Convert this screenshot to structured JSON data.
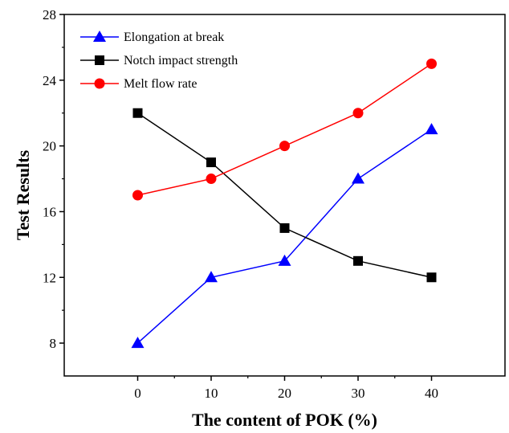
{
  "chart_data": {
    "type": "line",
    "xlabel": "The content of POK (%)",
    "ylabel": "Test Results",
    "x": [
      0,
      10,
      20,
      30,
      40
    ],
    "xlim": [
      -10,
      50
    ],
    "ylim": [
      6,
      28
    ],
    "xticks": [
      0,
      10,
      20,
      30,
      40
    ],
    "yticks": [
      8,
      12,
      16,
      20,
      24,
      28
    ],
    "grid": false,
    "legend_position": "top-left",
    "series": [
      {
        "name": "Elongation at break",
        "values": [
          8,
          12,
          13,
          18,
          21
        ],
        "color": "#0000ff",
        "marker": "triangle"
      },
      {
        "name": "Notch impact strength",
        "values": [
          22,
          19,
          15,
          13,
          12
        ],
        "color": "#000000",
        "marker": "square"
      },
      {
        "name": "Melt flow rate",
        "values": [
          17,
          18,
          20,
          22,
          25
        ],
        "color": "#ff0000",
        "marker": "circle"
      }
    ]
  }
}
